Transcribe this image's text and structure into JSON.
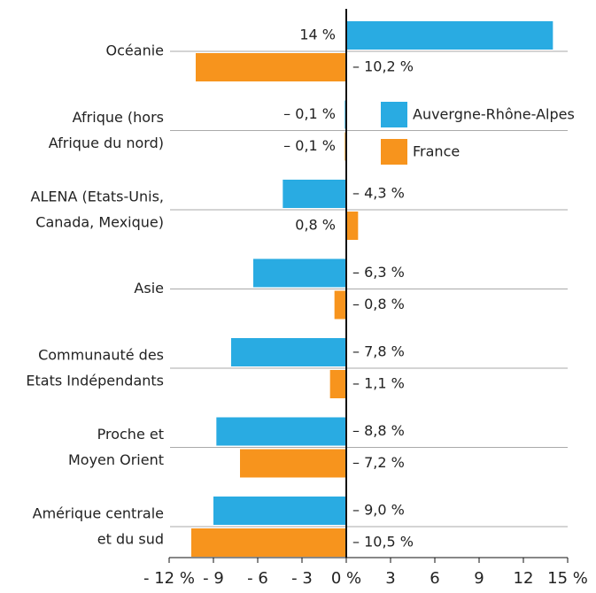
{
  "chart_data": {
    "type": "bar",
    "orientation": "horizontal",
    "categories": [
      "Océanie",
      "Afrique (hors\nAfrique du nord)",
      "ALENA (Etats-Unis,\nCanada, Mexique)",
      "Asie",
      "Communauté des\nEtats Indépendants",
      "Proche et\nMoyen Orient",
      "Amérique centrale\net du sud"
    ],
    "series": [
      {
        "name": "Auvergne-Rhône-Alpes",
        "color": "#29abe2",
        "values": [
          14,
          -0.1,
          -4.3,
          -6.3,
          -7.8,
          -8.8,
          -9.0
        ],
        "value_labels": [
          "14 %",
          "– 0,1 %",
          "– 4,3 %",
          "– 6,3 %",
          "– 7,8 %",
          "– 8,8 %",
          "– 9,0 %"
        ]
      },
      {
        "name": "France",
        "color": "#f7941d",
        "values": [
          -10.2,
          -0.1,
          0.8,
          -0.8,
          -1.1,
          -7.2,
          -10.5
        ],
        "value_labels": [
          "– 10,2 %",
          "– 0,1 %",
          "0,8 %",
          "– 0,8 %",
          "– 1,1 %",
          "– 7,2 %",
          "– 10,5 %"
        ]
      }
    ],
    "xlim": [
      -12,
      15
    ],
    "xticks": [
      {
        "value": -12,
        "label": "- 12 %"
      },
      {
        "value": -9,
        "label": "- 9"
      },
      {
        "value": -6,
        "label": "- 6"
      },
      {
        "value": -3,
        "label": "- 3"
      },
      {
        "value": 0,
        "label": "0 %"
      },
      3,
      6,
      9,
      12,
      {
        "value": 15,
        "label": "15 %"
      }
    ],
    "legend": "upper right"
  }
}
